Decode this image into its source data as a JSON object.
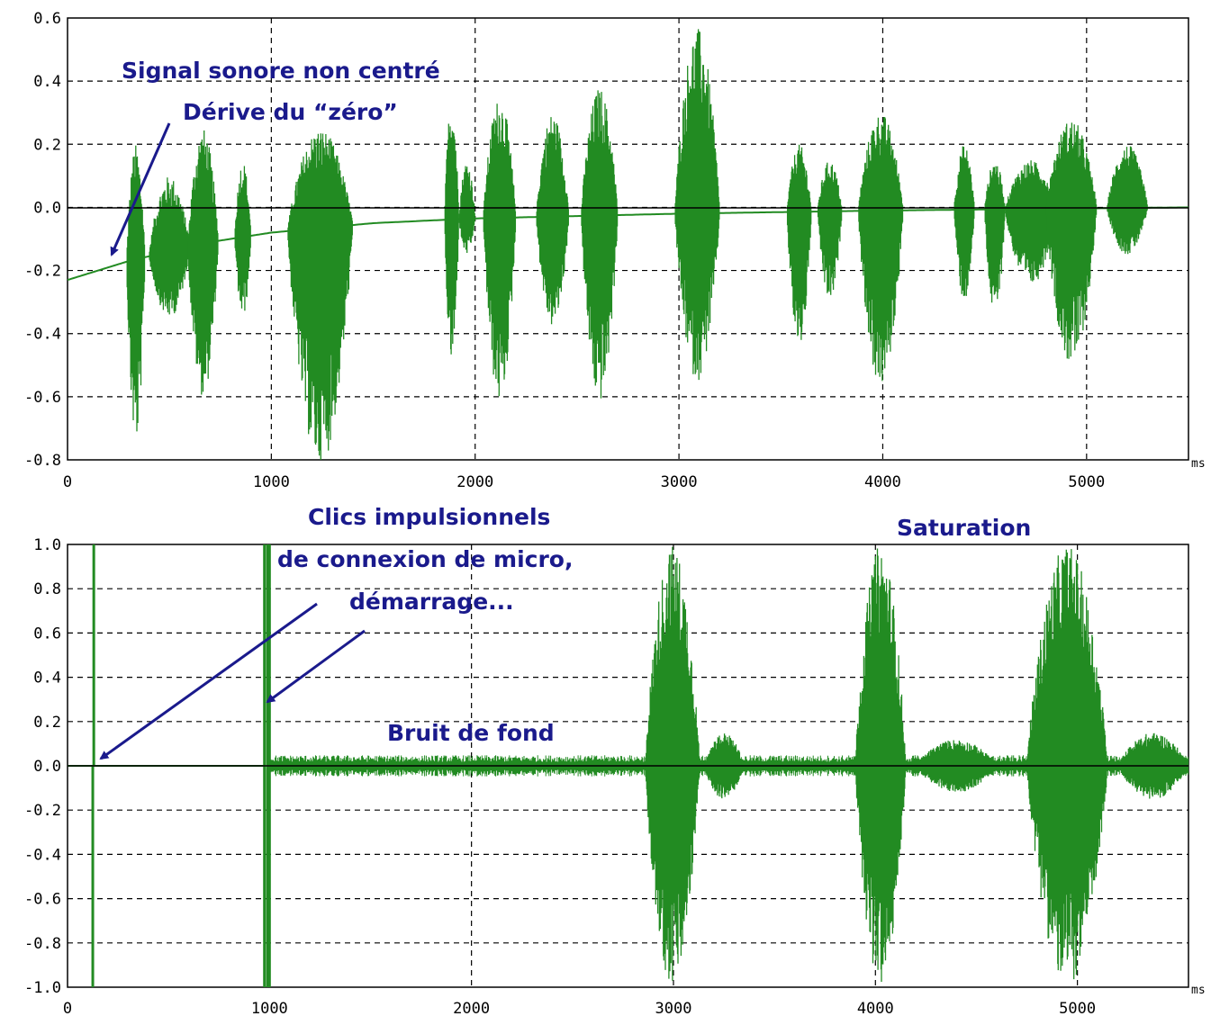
{
  "colors": {
    "signal": "#228b22",
    "annotation": "#1a1a8c",
    "grid": "#000000"
  },
  "chart_data": [
    {
      "type": "line",
      "x_unit": "ms",
      "xlim": [
        0,
        5500
      ],
      "ylim": [
        -0.8,
        0.6
      ],
      "x_ticks": [
        "0",
        "1000",
        "2000",
        "3000",
        "4000",
        "5000"
      ],
      "y_ticks": [
        "0.6",
        "0.4",
        "0.2",
        "0.0",
        "-0.2",
        "-0.4",
        "-0.6",
        "-0.8"
      ],
      "grid": true,
      "annotations": [
        "Signal sonore non centré",
        "Dérive du “zéro”"
      ],
      "baseline_drift": {
        "x": [
          0,
          300,
          700,
          1000,
          1500,
          2000,
          3000,
          4000,
          5500
        ],
        "y": [
          -0.23,
          -0.17,
          -0.11,
          -0.08,
          -0.05,
          -0.035,
          -0.02,
          -0.01,
          0.0
        ]
      },
      "bursts": [
        {
          "x0": 290,
          "x1": 380,
          "peak": 0.2,
          "trough": -0.75
        },
        {
          "x0": 400,
          "x1": 600,
          "peak": 0.1,
          "trough": -0.35
        },
        {
          "x0": 590,
          "x1": 740,
          "peak": 0.25,
          "trough": -0.6
        },
        {
          "x0": 820,
          "x1": 900,
          "peak": 0.15,
          "trough": -0.35
        },
        {
          "x0": 1080,
          "x1": 1400,
          "peak": 0.25,
          "trough": -0.82
        },
        {
          "x0": 1850,
          "x1": 1920,
          "peak": 0.35,
          "trough": -0.5
        },
        {
          "x0": 1920,
          "x1": 2000,
          "peak": 0.15,
          "trough": -0.15
        },
        {
          "x0": 2040,
          "x1": 2200,
          "peak": 0.35,
          "trough": -0.62
        },
        {
          "x0": 2300,
          "x1": 2460,
          "peak": 0.3,
          "trough": -0.38
        },
        {
          "x0": 2520,
          "x1": 2700,
          "peak": 0.38,
          "trough": -0.62
        },
        {
          "x0": 2980,
          "x1": 3200,
          "peak": 0.57,
          "trough": -0.55
        },
        {
          "x0": 3530,
          "x1": 3650,
          "peak": 0.2,
          "trough": -0.45
        },
        {
          "x0": 3680,
          "x1": 3800,
          "peak": 0.15,
          "trough": -0.3
        },
        {
          "x0": 3880,
          "x1": 4100,
          "peak": 0.3,
          "trough": -0.57
        },
        {
          "x0": 4350,
          "x1": 4450,
          "peak": 0.2,
          "trough": -0.3
        },
        {
          "x0": 4500,
          "x1": 4600,
          "peak": 0.15,
          "trough": -0.35
        },
        {
          "x0": 4600,
          "x1": 4850,
          "peak": 0.15,
          "trough": -0.25
        },
        {
          "x0": 4800,
          "x1": 5050,
          "peak": 0.28,
          "trough": -0.5
        },
        {
          "x0": 5100,
          "x1": 5300,
          "peak": 0.2,
          "trough": -0.15
        }
      ]
    },
    {
      "type": "line",
      "x_unit": "ms",
      "xlim": [
        0,
        5550
      ],
      "ylim": [
        -1.0,
        1.0
      ],
      "x_ticks": [
        "0",
        "1000",
        "2000",
        "3000",
        "4000",
        "5000"
      ],
      "y_ticks": [
        "1.0",
        "0.8",
        "0.6",
        "0.4",
        "0.2",
        "0.0",
        "-0.2",
        "-0.4",
        "-0.6",
        "-0.8",
        "-1.0"
      ],
      "grid": true,
      "annotations": [
        "Clics impulsionnels",
        "de connexion de micro,",
        "démarrage...",
        "Saturation",
        "Bruit de fond"
      ],
      "spikes": [
        {
          "x": 130,
          "y0": 0.0,
          "y1": 1.0
        },
        {
          "x": 125,
          "y0": -1.0,
          "y1": 0.0
        },
        {
          "x": 975,
          "y0": -1.0,
          "y1": 1.0
        },
        {
          "x": 990,
          "y0": -1.0,
          "y1": 1.0
        },
        {
          "x": 1000,
          "y0": -1.0,
          "y1": 1.0
        }
      ],
      "noise_amplitude": 0.03,
      "bursts": [
        {
          "x0": 2860,
          "x1": 3130,
          "peak": 1.0,
          "trough": -1.0
        },
        {
          "x0": 3900,
          "x1": 4150,
          "peak": 1.0,
          "trough": -1.0
        },
        {
          "x0": 4750,
          "x1": 5150,
          "peak": 1.0,
          "trough": -1.0
        },
        {
          "x0": 3150,
          "x1": 3350,
          "peak": 0.15,
          "trough": -0.15
        },
        {
          "x0": 4200,
          "x1": 4600,
          "peak": 0.12,
          "trough": -0.12
        },
        {
          "x0": 5200,
          "x1": 5550,
          "peak": 0.15,
          "trough": -0.15
        }
      ]
    }
  ]
}
